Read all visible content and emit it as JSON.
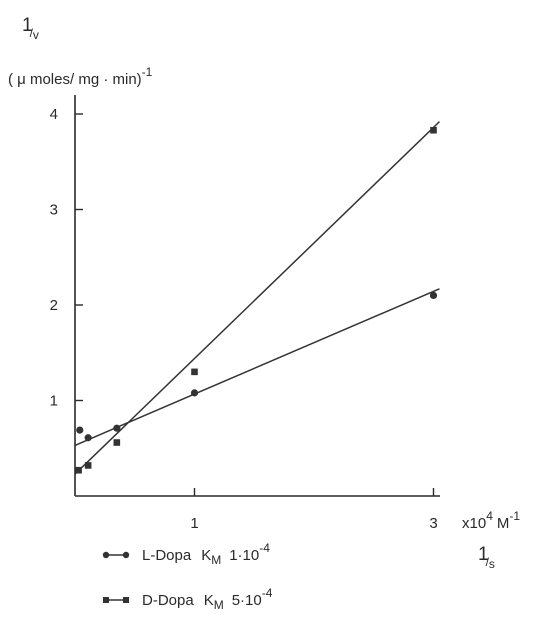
{
  "chart_data": {
    "type": "line",
    "xlim": [
      0,
      3.05
    ],
    "ylim": [
      0,
      4.2
    ],
    "x_ticks": [
      {
        "value": 1,
        "label": "1"
      },
      {
        "value": 3,
        "label": "3"
      }
    ],
    "y_ticks": [
      {
        "value": 1,
        "label": "1"
      },
      {
        "value": 2,
        "label": "2"
      },
      {
        "value": 3,
        "label": "3"
      },
      {
        "value": 4,
        "label": "4"
      }
    ],
    "y_axis": {
      "symbol": "1",
      "symbol_sub": "v",
      "unit": "( μ moles/ mg · min)",
      "unit_exp": "-1"
    },
    "x_axis": {
      "scale": "x10",
      "scale_exp": "4",
      "unit": "M",
      "unit_exp": "-1",
      "symbol": "1",
      "symbol_sub": "s"
    },
    "series": [
      {
        "name": "L-Dopa",
        "km_label": "K",
        "km_sub": "M",
        "km_value": "1·10",
        "km_exp": "-4",
        "marker": "circle",
        "color": "#333333",
        "points": [
          {
            "x": 0.04,
            "y": 0.69
          },
          {
            "x": 0.11,
            "y": 0.61
          },
          {
            "x": 0.35,
            "y": 0.71
          },
          {
            "x": 1.0,
            "y": 1.08
          },
          {
            "x": 3.0,
            "y": 2.1
          }
        ],
        "fit": [
          [
            0.0,
            0.53
          ],
          [
            3.05,
            2.17
          ]
        ]
      },
      {
        "name": "D-Dopa",
        "km_label": "K",
        "km_sub": "M",
        "km_value": "5·10",
        "km_exp": "-4",
        "marker": "square",
        "color": "#333333",
        "points": [
          {
            "x": 0.03,
            "y": 0.27
          },
          {
            "x": 0.11,
            "y": 0.32
          },
          {
            "x": 0.35,
            "y": 0.56
          },
          {
            "x": 1.0,
            "y": 1.3
          },
          {
            "x": 3.0,
            "y": 3.83
          }
        ],
        "fit": [
          [
            0.0,
            0.23
          ],
          [
            3.05,
            3.92
          ]
        ]
      }
    ],
    "legend_placement": "bottom-left"
  }
}
